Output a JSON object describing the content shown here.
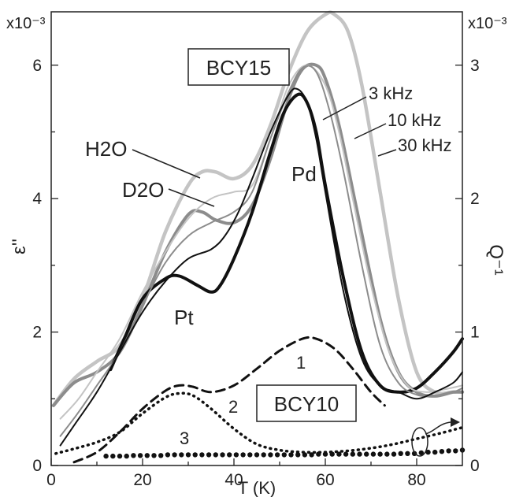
{
  "chart_data": {
    "type": "line",
    "xlabel": "T (K)",
    "ylabel_left": "ε''",
    "ylabel_right": "Q⁻¹",
    "left_multiplier": "x10⁻³",
    "right_multiplier": "x10⁻³",
    "xlim": [
      0,
      90
    ],
    "ylim_left": [
      0,
      6.8
    ],
    "ylim_right": [
      0,
      3.4
    ],
    "x_ticks": [
      0,
      20,
      40,
      60,
      80
    ],
    "y_ticks_left": [
      0,
      2,
      4,
      6
    ],
    "y_ticks_right": [
      0,
      1,
      2,
      3
    ],
    "grid": false,
    "annotations": {
      "sample_top": "BCY15",
      "sample_bottom": "BCY10",
      "h2o": "H2O",
      "d2o": "D2O",
      "peak_t": "Pt",
      "peak_d": "Pd",
      "curve_1": "1",
      "curve_2": "2",
      "curve_3": "3"
    },
    "frequency_labels": [
      "3 kHz",
      "10 kHz",
      "30 kHz"
    ],
    "series": [
      {
        "name": "H2O 30 kHz",
        "axis": "right",
        "color": "#c4c4c4",
        "width": 4.5,
        "style": "solid",
        "x": [
          0.5,
          5,
          10,
          15,
          20,
          25,
          30,
          33,
          36,
          40,
          44,
          48,
          52,
          56,
          60,
          62,
          65,
          68,
          72,
          76,
          80,
          84,
          88,
          90
        ],
        "y": [
          0.45,
          0.65,
          0.78,
          0.9,
          1.25,
          1.75,
          2.1,
          2.2,
          2.2,
          2.15,
          2.25,
          2.55,
          2.95,
          3.25,
          3.38,
          3.38,
          3.25,
          2.85,
          2.05,
          1.25,
          0.7,
          0.55,
          0.55,
          0.55
        ]
      },
      {
        "name": "H2O 10 kHz",
        "axis": "right",
        "color": "#8c8c8c",
        "width": 4,
        "style": "solid",
        "x": [
          0.5,
          5,
          10,
          15,
          20,
          25,
          30,
          33,
          36,
          40,
          44,
          48,
          52,
          55,
          58,
          60,
          63,
          67,
          72,
          76,
          80,
          84,
          88,
          90
        ],
        "y": [
          0.45,
          0.62,
          0.7,
          0.85,
          1.2,
          1.6,
          1.88,
          1.9,
          1.84,
          1.82,
          1.95,
          2.3,
          2.75,
          2.97,
          3.0,
          2.9,
          2.55,
          1.9,
          1.1,
          0.7,
          0.55,
          0.52,
          0.55,
          0.55
        ]
      },
      {
        "name": "D2O 3 kHz",
        "axis": "right",
        "color": "#111111",
        "width": 4,
        "style": "solid",
        "x": [
          13,
          16,
          20,
          25,
          28,
          32,
          35,
          37,
          40,
          44,
          48,
          51,
          54,
          56,
          58,
          60,
          64,
          68,
          72,
          76,
          80,
          84,
          88,
          90
        ],
        "y": [
          0.72,
          0.95,
          1.25,
          1.4,
          1.42,
          1.35,
          1.3,
          1.35,
          1.55,
          1.9,
          2.35,
          2.65,
          2.78,
          2.72,
          2.5,
          2.1,
          1.4,
          0.85,
          0.6,
          0.55,
          0.58,
          0.7,
          0.85,
          0.95
        ]
      },
      {
        "name": "D2O 30 kHz thin",
        "axis": "right",
        "color": "#c4c4c4",
        "width": 2,
        "style": "solid",
        "x": [
          2,
          6,
          10,
          15,
          20,
          25,
          30,
          35,
          40,
          44,
          48,
          52,
          56,
          60,
          63,
          66,
          70,
          74,
          78,
          82,
          86,
          90
        ],
        "y": [
          0.35,
          0.5,
          0.7,
          0.95,
          1.3,
          1.6,
          1.85,
          2.0,
          2.05,
          2.1,
          2.45,
          2.85,
          3.0,
          2.85,
          2.5,
          2.0,
          1.35,
          0.85,
          0.6,
          0.55,
          0.57,
          0.6
        ]
      },
      {
        "name": "D2O 10 kHz thin",
        "axis": "right",
        "color": "#8c8c8c",
        "width": 2,
        "style": "solid",
        "x": [
          2,
          6,
          10,
          15,
          20,
          25,
          30,
          35,
          40,
          44,
          48,
          52,
          55,
          58,
          61,
          64,
          68,
          72,
          76,
          80,
          84,
          88,
          90
        ],
        "y": [
          0.22,
          0.4,
          0.6,
          0.85,
          1.2,
          1.52,
          1.72,
          1.82,
          1.9,
          2.05,
          2.45,
          2.8,
          2.98,
          2.95,
          2.65,
          2.2,
          1.5,
          0.9,
          0.62,
          0.53,
          0.52,
          0.55,
          0.58
        ]
      },
      {
        "name": "3 kHz thin",
        "axis": "right",
        "color": "#111111",
        "width": 2,
        "style": "solid",
        "x": [
          2,
          5,
          10,
          15,
          20,
          25,
          30,
          35,
          38,
          41,
          44,
          48,
          52,
          54,
          56,
          58,
          60,
          64,
          68,
          72,
          76,
          80,
          84,
          88,
          90
        ],
        "y": [
          0.15,
          0.3,
          0.55,
          0.85,
          1.15,
          1.38,
          1.55,
          1.62,
          1.72,
          1.9,
          2.15,
          2.5,
          2.78,
          2.82,
          2.72,
          2.45,
          2.05,
          1.3,
          0.8,
          0.6,
          0.55,
          0.5,
          0.55,
          0.62,
          0.7
        ]
      },
      {
        "name": "1",
        "axis": "left",
        "color": "#111111",
        "width": 3,
        "style": "dashed",
        "x": [
          5,
          10,
          15,
          20,
          25,
          28,
          31,
          35,
          40,
          45,
          50,
          55,
          58,
          62,
          66,
          70,
          73
        ],
        "y": [
          0.05,
          0.2,
          0.5,
          0.85,
          1.12,
          1.2,
          1.18,
          1.1,
          1.2,
          1.45,
          1.72,
          1.9,
          1.9,
          1.75,
          1.45,
          1.1,
          0.9
        ]
      },
      {
        "name": "2",
        "axis": "left",
        "color": "#111111",
        "width": 3,
        "style": "dotted",
        "x": [
          1,
          5,
          10,
          15,
          20,
          25,
          28,
          31,
          35,
          40,
          45,
          50,
          55,
          60,
          65,
          70,
          75,
          80,
          85,
          90
        ],
        "y": [
          0.18,
          0.25,
          0.35,
          0.5,
          0.78,
          1.02,
          1.08,
          1.05,
          0.85,
          0.55,
          0.32,
          0.23,
          0.2,
          0.2,
          0.22,
          0.26,
          0.32,
          0.4,
          0.48,
          0.57
        ]
      },
      {
        "name": "3",
        "axis": "left",
        "color": "#111111",
        "width": 2,
        "style": "dots",
        "x": [
          12,
          13.5,
          15,
          16.5,
          18,
          19.5,
          21,
          22.5,
          24,
          25.5,
          27,
          28.5,
          30,
          31.5,
          33,
          34.5,
          36,
          37.5,
          39,
          40.5,
          42,
          43.5,
          45,
          46.5,
          48,
          49.5,
          51,
          52.5,
          54,
          55.5,
          57,
          58.5,
          60,
          61.5,
          63,
          64.5,
          66,
          67.5,
          69,
          70.5,
          72,
          73.5,
          75,
          76.5,
          78,
          79.5,
          81,
          82.5,
          84,
          85.5,
          87,
          88.5,
          90
        ],
        "y": [
          0.14,
          0.14,
          0.14,
          0.14,
          0.15,
          0.15,
          0.15,
          0.15,
          0.15,
          0.16,
          0.16,
          0.16,
          0.16,
          0.16,
          0.16,
          0.16,
          0.16,
          0.16,
          0.16,
          0.16,
          0.16,
          0.16,
          0.16,
          0.16,
          0.16,
          0.16,
          0.16,
          0.16,
          0.16,
          0.16,
          0.16,
          0.17,
          0.17,
          0.17,
          0.17,
          0.17,
          0.17,
          0.17,
          0.17,
          0.17,
          0.17,
          0.17,
          0.17,
          0.18,
          0.18,
          0.18,
          0.19,
          0.2,
          0.2,
          0.21,
          0.22,
          0.22,
          0.23
        ]
      }
    ]
  }
}
